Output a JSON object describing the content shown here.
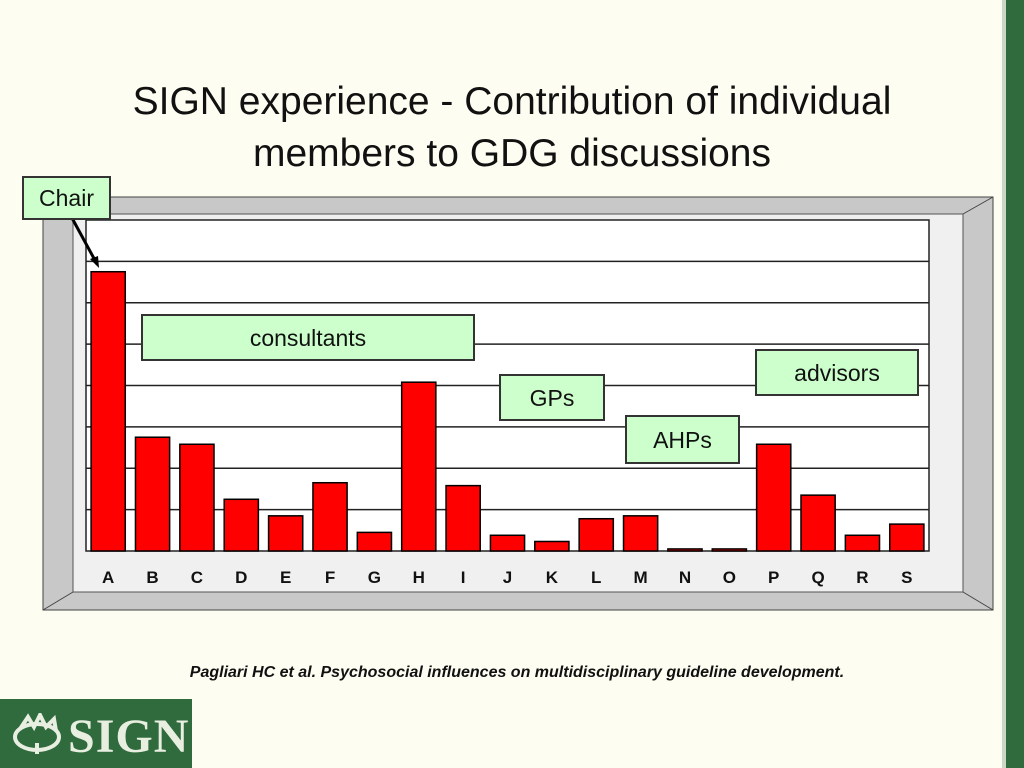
{
  "slide": {
    "title_line1": "SIGN experience - Contribution of individual",
    "title_line2": "members to GDG discussions",
    "citation": "Pagliari HC et al. Psychosocial influences on multidisciplinary guideline development.",
    "logo_text": "SIGN"
  },
  "callouts": {
    "chair": "Chair",
    "consultants": "consultants",
    "gps": "GPs",
    "ahps": "AHPs",
    "advisors": "advisors"
  },
  "colors": {
    "bar": "#ff0000",
    "callout_bg": "#ccffcc",
    "brand_green": "#2f6b3c"
  },
  "chart_data": {
    "type": "bar",
    "categories": [
      "A",
      "B",
      "C",
      "D",
      "E",
      "F",
      "G",
      "H",
      "I",
      "J",
      "K",
      "L",
      "M",
      "N",
      "O",
      "P",
      "Q",
      "R",
      "S"
    ],
    "values": [
      67.5,
      27.5,
      25.8,
      12.5,
      8.5,
      16.5,
      4.5,
      40.8,
      15.8,
      3.8,
      2.3,
      7.8,
      8.5,
      0.5,
      0.5,
      25.8,
      13.5,
      3.8,
      6.5
    ],
    "ylim": [
      0,
      80
    ],
    "grid": true,
    "title": "",
    "xlabel": "",
    "ylabel": ""
  }
}
